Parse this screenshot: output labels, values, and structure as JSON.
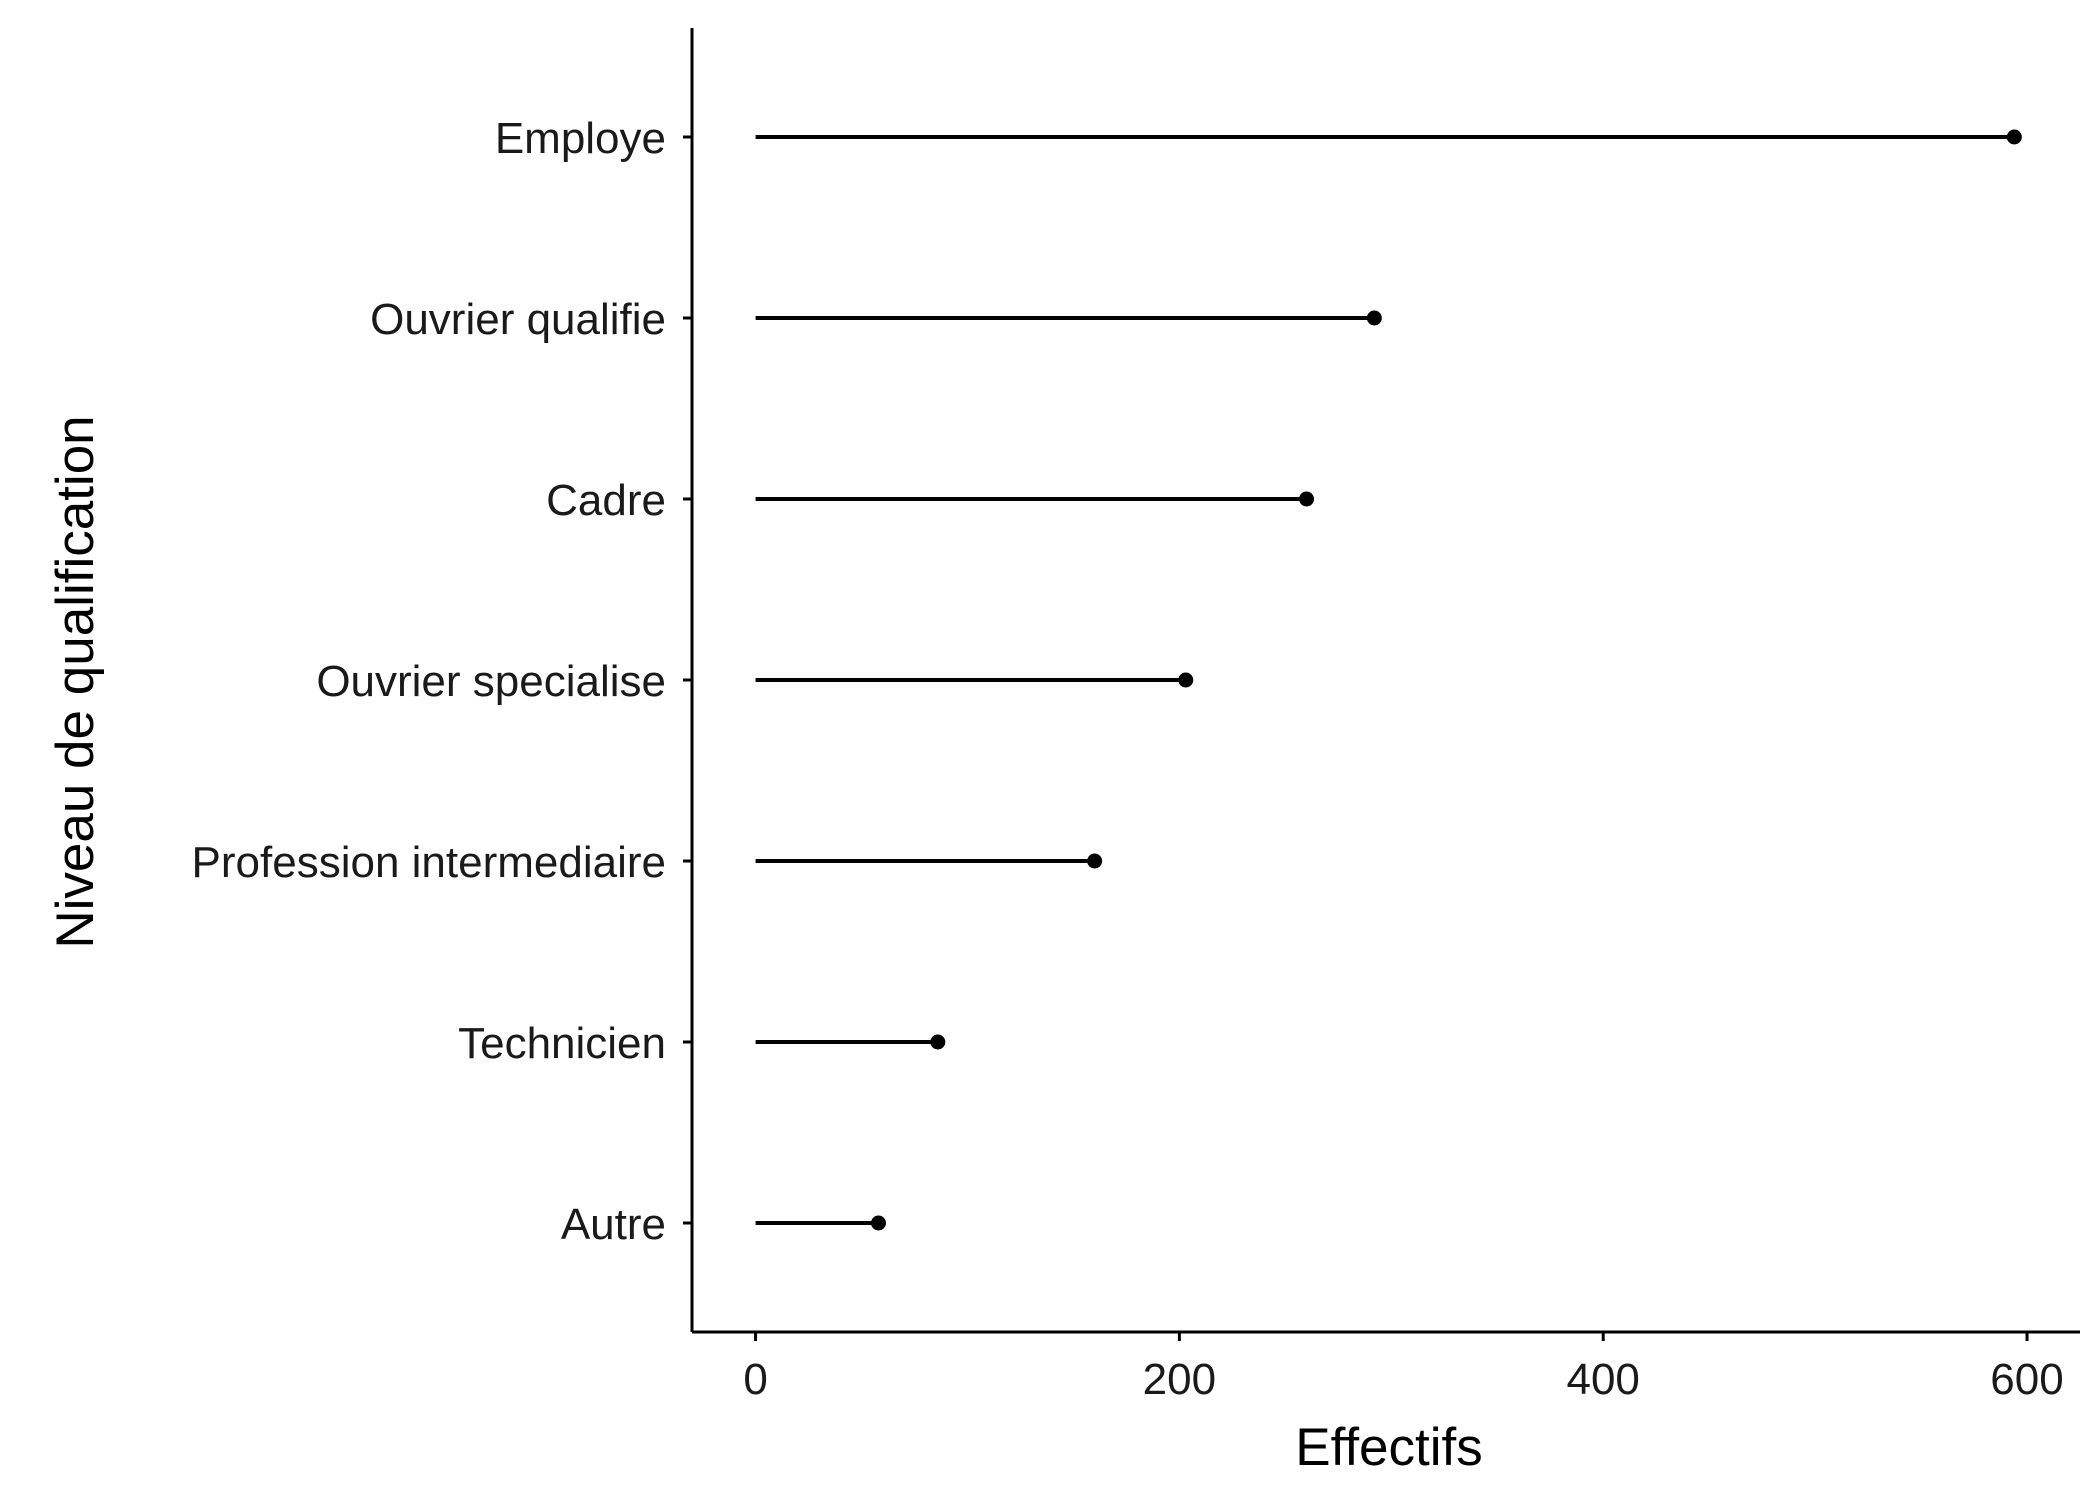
{
  "chart_data": {
    "type": "lollipop",
    "orientation": "horizontal",
    "title": "",
    "xlabel": "Effectifs",
    "ylabel": "Niveau de qualification",
    "categories": [
      "Employe",
      "Ouvrier qualifie",
      "Cadre",
      "Ouvrier specialise",
      "Profession intermediaire",
      "Technicien",
      "Autre"
    ],
    "values": [
      594,
      292,
      260,
      203,
      160,
      86,
      58
    ],
    "xlim": [
      -30,
      625
    ],
    "xticks": [
      0,
      200,
      400,
      600
    ],
    "xtick_labels": [
      "0",
      "200",
      "400",
      "600"
    ],
    "grid": false,
    "legend": "none",
    "colors": {
      "marks": "#000000",
      "axis": "#000000",
      "text": "#1a1a1a"
    }
  }
}
